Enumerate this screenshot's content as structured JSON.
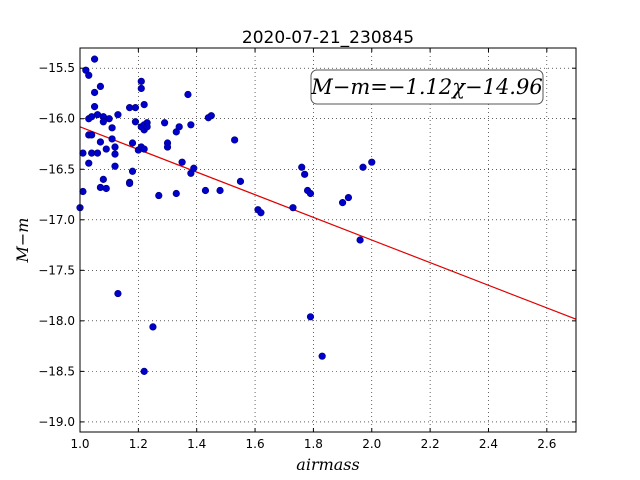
{
  "chart_data": {
    "type": "scatter",
    "title": "2020-07-21_230845",
    "xlabel": "airmass",
    "ylabel": "M−m",
    "xlim": [
      1.0,
      2.7
    ],
    "ylim": [
      -19.1,
      -15.3
    ],
    "x_ticks": [
      1.0,
      1.2,
      1.4,
      1.6,
      1.8,
      2.0,
      2.2,
      2.4,
      2.6
    ],
    "x_tick_labels": [
      "1.0",
      "1.2",
      "1.4",
      "1.6",
      "1.8",
      "2.0",
      "2.2",
      "2.4",
      "2.6"
    ],
    "y_ticks": [
      -15.5,
      -16.0,
      -16.5,
      -17.0,
      -17.5,
      -18.0,
      -18.5,
      -19.0
    ],
    "y_tick_labels": [
      "−15.5",
      "−16.0",
      "−16.5",
      "−17.0",
      "−17.5",
      "−18.0",
      "−18.5",
      "−19.0"
    ],
    "grid": true,
    "annotation": "M−m=−1.12χ−14.96",
    "fit": {
      "slope": -1.12,
      "intercept": -14.96,
      "x_range": [
        1.0,
        2.7
      ],
      "color": "#e00000"
    },
    "point_color": "#0000cc",
    "points": [
      [
        1.0,
        -16.88
      ],
      [
        1.01,
        -16.34
      ],
      [
        1.01,
        -16.72
      ],
      [
        1.02,
        -15.52
      ],
      [
        1.03,
        -15.57
      ],
      [
        1.03,
        -16.16
      ],
      [
        1.03,
        -16.44
      ],
      [
        1.03,
        -16.0
      ],
      [
        1.04,
        -16.34
      ],
      [
        1.04,
        -16.16
      ],
      [
        1.04,
        -15.98
      ],
      [
        1.05,
        -15.41
      ],
      [
        1.05,
        -15.74
      ],
      [
        1.05,
        -15.88
      ],
      [
        1.06,
        -16.34
      ],
      [
        1.06,
        -15.96
      ],
      [
        1.07,
        -16.68
      ],
      [
        1.07,
        -15.68
      ],
      [
        1.07,
        -16.23
      ],
      [
        1.08,
        -15.98
      ],
      [
        1.08,
        -16.03
      ],
      [
        1.08,
        -16.6
      ],
      [
        1.09,
        -16.69
      ],
      [
        1.09,
        -16.3
      ],
      [
        1.1,
        -16.0
      ],
      [
        1.11,
        -16.09
      ],
      [
        1.11,
        -16.2
      ],
      [
        1.12,
        -16.28
      ],
      [
        1.12,
        -16.47
      ],
      [
        1.12,
        -16.35
      ],
      [
        1.13,
        -15.96
      ],
      [
        1.13,
        -17.73
      ],
      [
        1.17,
        -16.63
      ],
      [
        1.17,
        -16.64
      ],
      [
        1.17,
        -15.89
      ],
      [
        1.18,
        -16.52
      ],
      [
        1.18,
        -16.24
      ],
      [
        1.19,
        -16.03
      ],
      [
        1.19,
        -15.89
      ],
      [
        1.2,
        -16.31
      ],
      [
        1.21,
        -16.28
      ],
      [
        1.21,
        -16.08
      ],
      [
        1.21,
        -15.7
      ],
      [
        1.21,
        -15.63
      ],
      [
        1.22,
        -15.86
      ],
      [
        1.22,
        -16.11
      ],
      [
        1.22,
        -16.06
      ],
      [
        1.22,
        -16.3
      ],
      [
        1.22,
        -18.5
      ],
      [
        1.23,
        -16.04
      ],
      [
        1.23,
        -16.08
      ],
      [
        1.25,
        -18.06
      ],
      [
        1.27,
        -16.76
      ],
      [
        1.29,
        -16.04
      ],
      [
        1.3,
        -16.24
      ],
      [
        1.3,
        -16.28
      ],
      [
        1.33,
        -16.74
      ],
      [
        1.33,
        -16.13
      ],
      [
        1.34,
        -16.08
      ],
      [
        1.35,
        -16.43
      ],
      [
        1.37,
        -15.76
      ],
      [
        1.38,
        -16.06
      ],
      [
        1.38,
        -16.54
      ],
      [
        1.39,
        -16.49
      ],
      [
        1.43,
        -16.71
      ],
      [
        1.44,
        -15.99
      ],
      [
        1.45,
        -15.97
      ],
      [
        1.48,
        -16.71
      ],
      [
        1.53,
        -16.21
      ],
      [
        1.55,
        -16.62
      ],
      [
        1.61,
        -16.9
      ],
      [
        1.62,
        -16.93
      ],
      [
        1.73,
        -16.88
      ],
      [
        1.76,
        -16.48
      ],
      [
        1.77,
        -16.55
      ],
      [
        1.78,
        -16.71
      ],
      [
        1.79,
        -16.74
      ],
      [
        1.79,
        -17.96
      ],
      [
        1.83,
        -18.35
      ],
      [
        1.9,
        -16.83
      ],
      [
        1.92,
        -16.78
      ],
      [
        1.96,
        -17.2
      ],
      [
        1.97,
        -16.48
      ],
      [
        2.0,
        -16.43
      ]
    ]
  }
}
